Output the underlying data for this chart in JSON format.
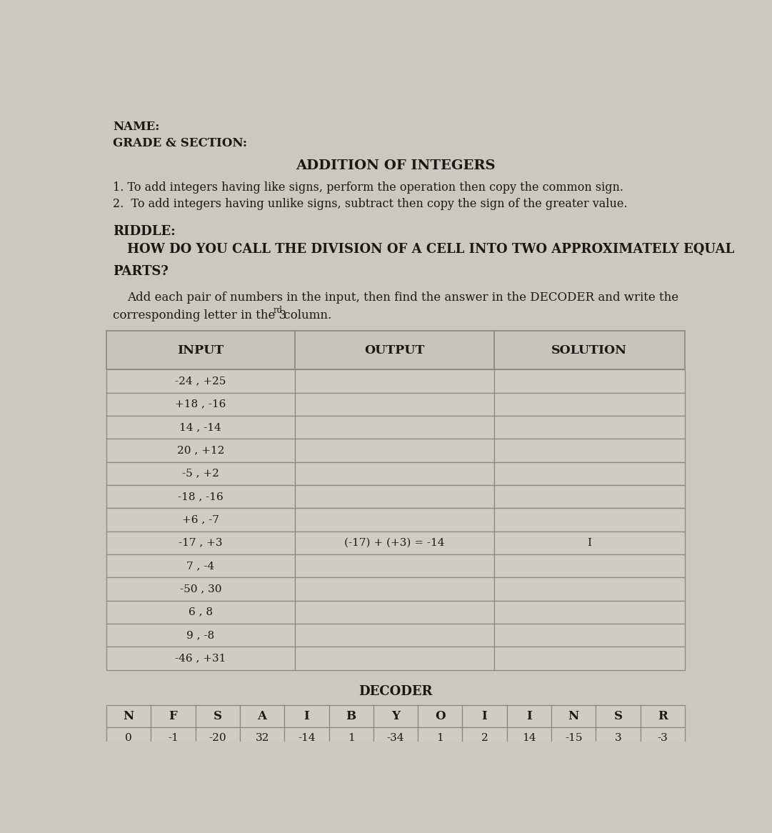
{
  "page_bg": "#ccc8c0",
  "content_bg": "#d8d4cc",
  "cell_bg": "#d0ccc4",
  "header_cell_bg": "#c8c4bc",
  "name_label": "NAME:",
  "grade_label": "GRADE & SECTION:",
  "title": "ADDITION OF INTEGERS",
  "rule1": "1. To add integers having like signs, perform the operation then copy the common sign.",
  "rule2": "2.  To add integers having unlike signs, subtract then copy the sign of the greater value.",
  "riddle_label": "RIDDLE:",
  "riddle_line1": "HOW DO YOU CALL THE DIVISION OF A CELL INTO TWO APPROXIMATELY EQUAL",
  "riddle_line2": "PARTS?",
  "instr_line1": "Add each pair of numbers in the input, then find the answer in the DECODER and write the",
  "instr_line2_pre": "corresponding letter in the 3",
  "instr_sup": "rd",
  "instr_line2_post": " column.",
  "table_headers": [
    "INPUT",
    "OUTPUT",
    "SOLUTION"
  ],
  "table_rows": [
    [
      "-24 , +25",
      "",
      ""
    ],
    [
      "+18 , -16",
      "",
      ""
    ],
    [
      "14 , -14",
      "",
      ""
    ],
    [
      "20 , +12",
      "",
      ""
    ],
    [
      "-5 , +2",
      "",
      ""
    ],
    [
      "-18 , -16",
      "",
      ""
    ],
    [
      "+6 , -7",
      "",
      ""
    ],
    [
      "-17 , +3",
      "(-17) + (+3) = -14",
      "I"
    ],
    [
      "7 , -4",
      "",
      ""
    ],
    [
      "-50 , 30",
      "",
      ""
    ],
    [
      "6 , 8",
      "",
      ""
    ],
    [
      "9 , -8",
      "",
      ""
    ],
    [
      "-46 , +31",
      "",
      ""
    ]
  ],
  "decoder_title": "DECODER",
  "decoder_letters": [
    "N",
    "F",
    "S",
    "A",
    "I",
    "B",
    "Y",
    "O",
    "I",
    "I",
    "N",
    "S",
    "R"
  ],
  "decoder_values": [
    "0",
    "-1",
    "-20",
    "32",
    "-14",
    "1",
    "-34",
    "1",
    "2",
    "14",
    "-15",
    "3",
    "-3"
  ],
  "text_color": "#1a1812",
  "line_color": "#888880"
}
